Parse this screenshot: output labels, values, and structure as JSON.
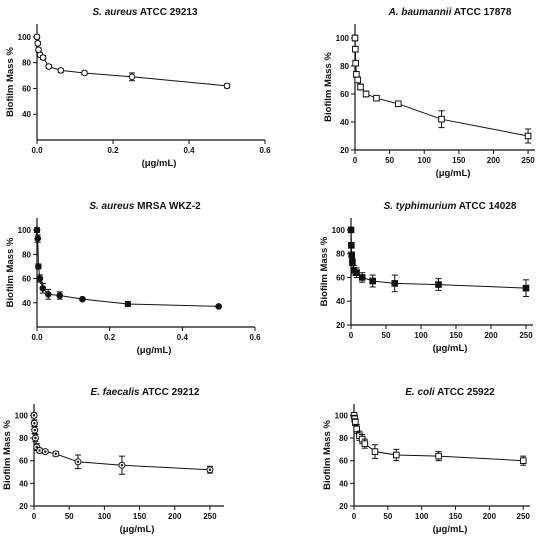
{
  "chart_data": [
    {
      "type": "line",
      "title_species": "S. aureus",
      "title_strain": "ATCC 29213",
      "ylabel": "Biofilm Mass %",
      "xlabel": "(μg/mL)",
      "xlim": [
        0,
        0.6
      ],
      "ylim": [
        20,
        110
      ],
      "xticks": [
        0.0,
        0.2,
        0.4,
        0.6
      ],
      "yticks": [
        40,
        60,
        80,
        100
      ],
      "marker": "open-circle",
      "points": [
        {
          "x": 0.0,
          "y": 100,
          "err": 1.5
        },
        {
          "x": 0.002,
          "y": 95,
          "err": 1.5
        },
        {
          "x": 0.004,
          "y": 90,
          "err": 1.5
        },
        {
          "x": 0.008,
          "y": 86,
          "err": 1.5
        },
        {
          "x": 0.016,
          "y": 84,
          "err": 1.5
        },
        {
          "x": 0.031,
          "y": 77,
          "err": 1.5
        },
        {
          "x": 0.0625,
          "y": 74,
          "err": 1.5
        },
        {
          "x": 0.125,
          "y": 72,
          "err": 1.5
        },
        {
          "x": 0.25,
          "y": 69,
          "err": 3
        },
        {
          "x": 0.5,
          "y": 62,
          "err": 1.5
        }
      ]
    },
    {
      "type": "line",
      "title_species": "A. baumannii",
      "title_strain": "ATCC 17878",
      "ylabel": "Biofilm Mass %",
      "xlabel": "(μg/mL)",
      "xlim": [
        0,
        260
      ],
      "ylim": [
        20,
        110
      ],
      "xticks": [
        0,
        50,
        100,
        150,
        200,
        250
      ],
      "yticks": [
        20,
        40,
        60,
        80,
        100
      ],
      "marker": "open-square",
      "points": [
        {
          "x": 0,
          "y": 100,
          "err": 2
        },
        {
          "x": 0.5,
          "y": 92,
          "err": 2
        },
        {
          "x": 1,
          "y": 82,
          "err": 2
        },
        {
          "x": 2,
          "y": 74,
          "err": 2
        },
        {
          "x": 4,
          "y": 70,
          "err": 2
        },
        {
          "x": 8,
          "y": 65,
          "err": 2
        },
        {
          "x": 16,
          "y": 60,
          "err": 2
        },
        {
          "x": 31,
          "y": 57,
          "err": 1.5
        },
        {
          "x": 62.5,
          "y": 53,
          "err": 1.5
        },
        {
          "x": 125,
          "y": 42,
          "err": 6
        },
        {
          "x": 250,
          "y": 30,
          "err": 5
        }
      ]
    },
    {
      "type": "line",
      "title_species": "S. aureus",
      "title_strain": "MRSA WKZ-2",
      "ylabel": "Biofilm Mass %",
      "xlabel": "(μg/mL)",
      "xlim": [
        0,
        0.6
      ],
      "ylim": [
        20,
        110
      ],
      "xticks": [
        0.0,
        0.2,
        0.4,
        0.6
      ],
      "yticks": [
        40,
        60,
        80,
        100
      ],
      "marker": "filled-circle",
      "points": [
        {
          "x": 0.0,
          "y": 100,
          "err": 2
        },
        {
          "x": 0.002,
          "y": 93,
          "err": 3
        },
        {
          "x": 0.004,
          "y": 70,
          "err": 2
        },
        {
          "x": 0.008,
          "y": 60,
          "err": 3
        },
        {
          "x": 0.016,
          "y": 52,
          "err": 4
        },
        {
          "x": 0.031,
          "y": 47,
          "err": 4
        },
        {
          "x": 0.0625,
          "y": 46,
          "err": 3
        },
        {
          "x": 0.125,
          "y": 43,
          "err": 1
        },
        {
          "x": 0.25,
          "y": 39,
          "err": 2
        },
        {
          "x": 0.5,
          "y": 37,
          "err": 1
        }
      ]
    },
    {
      "type": "line",
      "title_species": "S. typhimurium",
      "title_strain": "ATCC 14028",
      "ylabel": "Biofilm Mass %",
      "xlabel": "(μg/mL)",
      "xlim": [
        0,
        260
      ],
      "ylim": [
        20,
        110
      ],
      "xticks": [
        0,
        50,
        100,
        150,
        200,
        250
      ],
      "yticks": [
        20,
        40,
        60,
        80,
        100
      ],
      "marker": "filled-square",
      "points": [
        {
          "x": 0,
          "y": 100,
          "err": 2
        },
        {
          "x": 0.5,
          "y": 87,
          "err": 2
        },
        {
          "x": 1,
          "y": 79,
          "err": 2
        },
        {
          "x": 2,
          "y": 73,
          "err": 3
        },
        {
          "x": 4,
          "y": 66,
          "err": 4
        },
        {
          "x": 8,
          "y": 64,
          "err": 4
        },
        {
          "x": 16,
          "y": 60,
          "err": 4
        },
        {
          "x": 31,
          "y": 57,
          "err": 5
        },
        {
          "x": 62.5,
          "y": 55,
          "err": 7
        },
        {
          "x": 125,
          "y": 54,
          "err": 5
        },
        {
          "x": 250,
          "y": 51,
          "err": 7
        }
      ]
    },
    {
      "type": "line",
      "title_species": "E. faecalis",
      "title_strain": "ATCC 29212",
      "ylabel": "Biofilm Mass %",
      "xlabel": "(μg/mL)",
      "xlim": [
        0,
        270
      ],
      "ylim": [
        20,
        110
      ],
      "xticks": [
        0,
        50,
        100,
        150,
        200,
        250
      ],
      "yticks": [
        20,
        40,
        60,
        80,
        100
      ],
      "marker": "circle-dot",
      "points": [
        {
          "x": 0,
          "y": 100,
          "err": 2
        },
        {
          "x": 0.5,
          "y": 93,
          "err": 3
        },
        {
          "x": 1,
          "y": 87,
          "err": 3
        },
        {
          "x": 2,
          "y": 80,
          "err": 3
        },
        {
          "x": 4,
          "y": 72,
          "err": 3
        },
        {
          "x": 8,
          "y": 69,
          "err": 2
        },
        {
          "x": 16,
          "y": 68,
          "err": 1.5
        },
        {
          "x": 31,
          "y": 66,
          "err": 2
        },
        {
          "x": 62.5,
          "y": 59,
          "err": 6
        },
        {
          "x": 125,
          "y": 56,
          "err": 8
        },
        {
          "x": 250,
          "y": 52,
          "err": 3
        }
      ]
    },
    {
      "type": "line",
      "title_species": "E. coli",
      "title_strain": "ATCC 25922",
      "ylabel": "Biofilm Mass %",
      "xlabel": "(μg/mL)",
      "xlim": [
        0,
        260
      ],
      "ylim": [
        20,
        110
      ],
      "xticks": [
        0,
        50,
        100,
        150,
        200,
        250
      ],
      "yticks": [
        20,
        40,
        60,
        80,
        100
      ],
      "marker": "open-square",
      "points": [
        {
          "x": 0,
          "y": 100,
          "err": 2
        },
        {
          "x": 1,
          "y": 97,
          "err": 3
        },
        {
          "x": 2,
          "y": 94,
          "err": 3
        },
        {
          "x": 4,
          "y": 88,
          "err": 4
        },
        {
          "x": 8,
          "y": 82,
          "err": 4
        },
        {
          "x": 12,
          "y": 79,
          "err": 4
        },
        {
          "x": 16,
          "y": 75,
          "err": 4
        },
        {
          "x": 31,
          "y": 68,
          "err": 6
        },
        {
          "x": 62.5,
          "y": 65,
          "err": 5
        },
        {
          "x": 125,
          "y": 64,
          "err": 4
        },
        {
          "x": 250,
          "y": 60,
          "err": 4
        }
      ]
    }
  ]
}
